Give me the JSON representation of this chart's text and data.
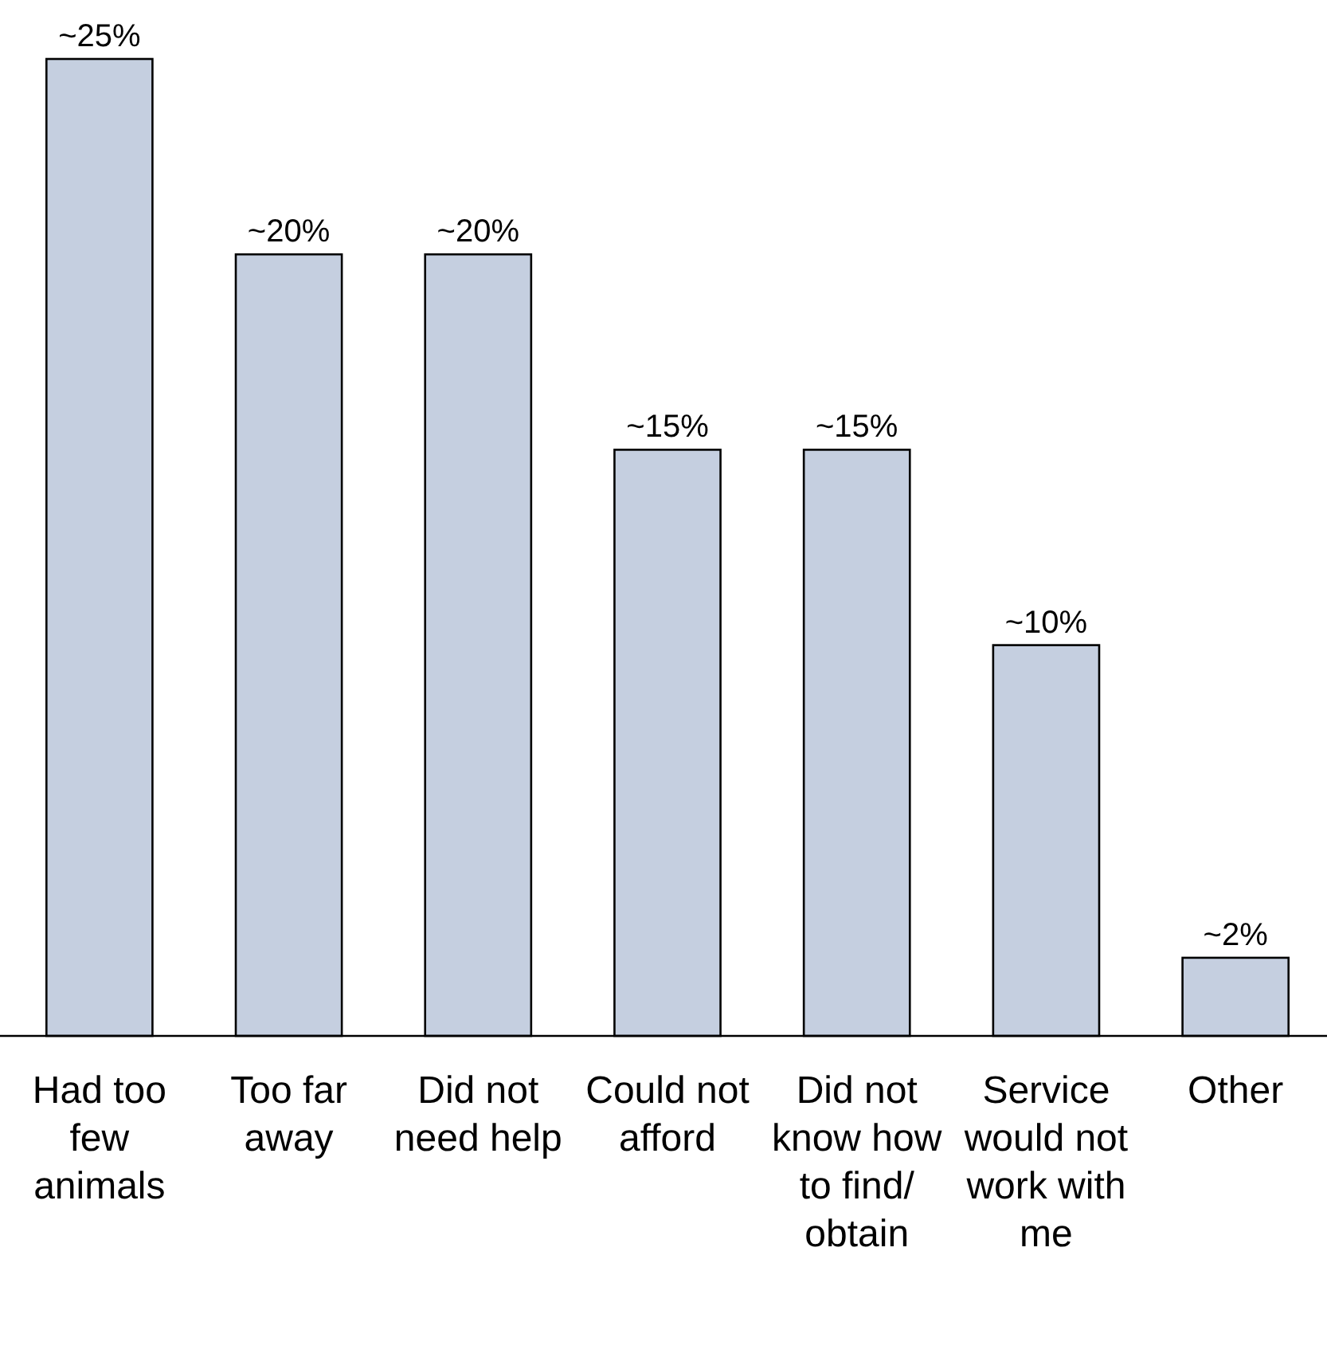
{
  "chart_data": {
    "type": "bar",
    "categories": [
      "Had too few animals",
      "Too far away",
      "Did not need help",
      "Could not afford",
      "Did not know how to find/obtain",
      "Service would not work with me",
      "Other"
    ],
    "values": [
      25,
      20,
      20,
      15,
      15,
      10,
      2
    ],
    "value_labels": [
      "~25%",
      "~20%",
      "~20%",
      "~15%",
      "~15%",
      "~10%",
      "~2%"
    ],
    "color": "#c5cfe0",
    "ylim": [
      0,
      25
    ],
    "tick_labels": "x"
  }
}
